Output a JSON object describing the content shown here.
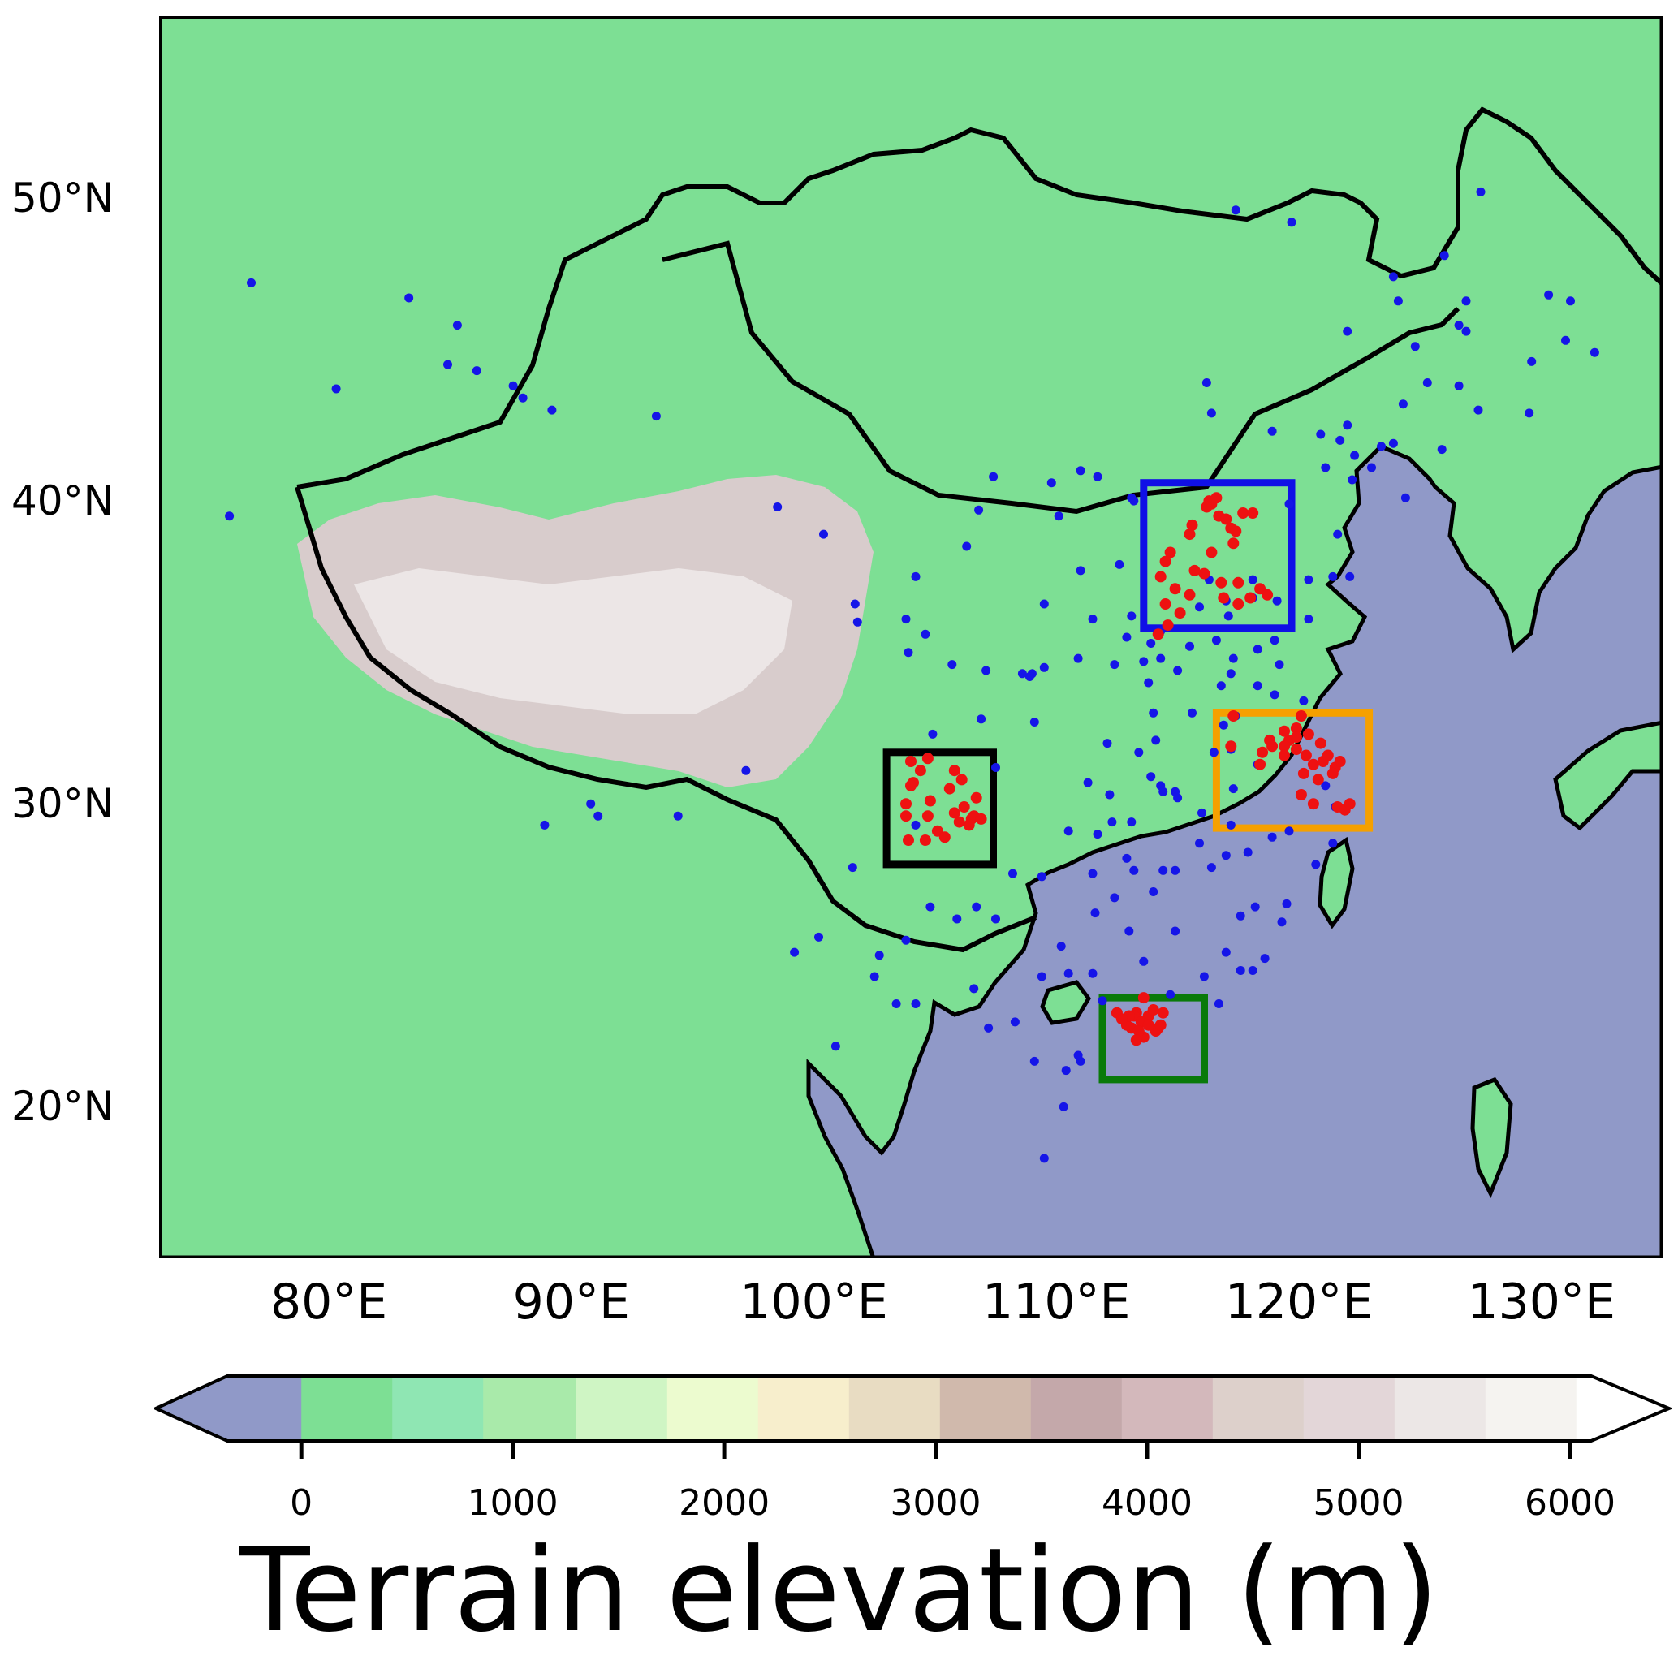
{
  "map": {
    "title": "",
    "lon_range": [
      73,
      135
    ],
    "lat_range": [
      15,
      56
    ],
    "colors": {
      "ocean": "#9099c8",
      "land_low": "#7ddf94",
      "land_mid": "#8fe6b3",
      "plateau": "#d8cccc",
      "plateau_high": "#ece6e6",
      "coast": "#000000",
      "site_blue": "#1515e8",
      "site_red": "#ee1111"
    },
    "lat_axis": {
      "ticks": [
        {
          "value": 50,
          "label": "50°N"
        },
        {
          "value": 40,
          "label": "40°N"
        },
        {
          "value": 30,
          "label": "30°N"
        },
        {
          "value": 20,
          "label": "20°N"
        }
      ]
    },
    "lon_axis": {
      "ticks": [
        {
          "value": 80,
          "label": "80°E"
        },
        {
          "value": 90,
          "label": "90°E"
        },
        {
          "value": 100,
          "label": "100°E"
        },
        {
          "value": 110,
          "label": "110°E"
        },
        {
          "value": 120,
          "label": "120°E"
        },
        {
          "value": 130,
          "label": "130°E"
        }
      ]
    },
    "region_boxes": [
      {
        "color": "#1010e6",
        "lon": [
          113.6,
          119.7
        ],
        "lat": [
          35.8,
          40.6
        ]
      },
      {
        "color": "#f5a000",
        "lon": [
          116.6,
          122.9
        ],
        "lat": [
          29.2,
          33.0
        ]
      },
      {
        "color": "#000000",
        "lon": [
          103.0,
          107.4
        ],
        "lat": [
          28.0,
          31.7
        ]
      },
      {
        "color": "#0a7a0a",
        "lon": [
          111.9,
          116.1
        ],
        "lat": [
          20.9,
          23.6
        ]
      }
    ],
    "blue_sites": [
      [
        76.8,
        47.2
      ],
      [
        83.3,
        46.7
      ],
      [
        85.3,
        45.8
      ],
      [
        80.3,
        43.7
      ],
      [
        84.9,
        44.5
      ],
      [
        86.1,
        44.3
      ],
      [
        87.6,
        43.8
      ],
      [
        88.0,
        43.4
      ],
      [
        89.2,
        43.0
      ],
      [
        93.5,
        42.8
      ],
      [
        75.9,
        39.5
      ],
      [
        90.8,
        30.0
      ],
      [
        91.1,
        29.6
      ],
      [
        94.4,
        29.6
      ],
      [
        88.9,
        29.3
      ],
      [
        97.2,
        31.1
      ],
      [
        98.5,
        39.8
      ],
      [
        100.4,
        38.9
      ],
      [
        101.7,
        36.6
      ],
      [
        101.8,
        36.0
      ],
      [
        103.8,
        36.1
      ],
      [
        104.6,
        35.6
      ],
      [
        105.7,
        34.6
      ],
      [
        103.9,
        35.0
      ],
      [
        104.2,
        37.5
      ],
      [
        106.3,
        38.5
      ],
      [
        106.8,
        39.7
      ],
      [
        107.4,
        40.8
      ],
      [
        109.8,
        40.6
      ],
      [
        111.7,
        40.8
      ],
      [
        110.1,
        39.5
      ],
      [
        111.0,
        37.7
      ],
      [
        112.6,
        37.9
      ],
      [
        112.9,
        35.5
      ],
      [
        113.1,
        36.2
      ],
      [
        113.2,
        40.0
      ],
      [
        111.5,
        36.1
      ],
      [
        109.5,
        36.6
      ],
      [
        109.0,
        34.3
      ],
      [
        108.9,
        34.2
      ],
      [
        107.1,
        34.4
      ],
      [
        108.6,
        34.3
      ],
      [
        109.5,
        34.5
      ],
      [
        110.9,
        34.8
      ],
      [
        109.1,
        32.7
      ],
      [
        106.9,
        32.8
      ],
      [
        104.9,
        32.3
      ],
      [
        106.1,
        30.8
      ],
      [
        105.6,
        30.5
      ],
      [
        107.5,
        31.2
      ],
      [
        106.6,
        29.6
      ],
      [
        104.2,
        29.3
      ],
      [
        102.7,
        25.0
      ],
      [
        103.8,
        25.5
      ],
      [
        102.5,
        24.3
      ],
      [
        101.6,
        27.9
      ],
      [
        100.2,
        25.6
      ],
      [
        99.2,
        25.1
      ],
      [
        100.9,
        22.0
      ],
      [
        103.4,
        23.4
      ],
      [
        104.2,
        23.4
      ],
      [
        106.7,
        26.6
      ],
      [
        104.8,
        26.6
      ],
      [
        105.9,
        26.2
      ],
      [
        107.5,
        26.2
      ],
      [
        108.2,
        27.7
      ],
      [
        109.4,
        27.6
      ],
      [
        110.2,
        25.3
      ],
      [
        108.3,
        22.8
      ],
      [
        109.4,
        24.3
      ],
      [
        110.5,
        24.4
      ],
      [
        111.5,
        24.4
      ],
      [
        111.0,
        21.5
      ],
      [
        110.4,
        21.2
      ],
      [
        109.1,
        21.5
      ],
      [
        106.6,
        23.9
      ],
      [
        107.2,
        22.6
      ],
      [
        110.3,
        20.0
      ],
      [
        109.5,
        18.3
      ],
      [
        112.9,
        28.2
      ],
      [
        113.2,
        27.8
      ],
      [
        112.4,
        26.9
      ],
      [
        113.0,
        25.8
      ],
      [
        111.6,
        26.4
      ],
      [
        111.5,
        27.7
      ],
      [
        112.3,
        29.4
      ],
      [
        113.1,
        29.4
      ],
      [
        111.7,
        29.0
      ],
      [
        110.5,
        29.1
      ],
      [
        114.3,
        30.6
      ],
      [
        114.4,
        30.4
      ],
      [
        113.9,
        30.9
      ],
      [
        112.2,
        30.3
      ],
      [
        111.3,
        30.7
      ],
      [
        112.1,
        32.0
      ],
      [
        113.4,
        31.7
      ],
      [
        114.9,
        30.4
      ],
      [
        115.0,
        30.2
      ],
      [
        114.1,
        32.1
      ],
      [
        113.6,
        34.7
      ],
      [
        112.4,
        34.6
      ],
      [
        114.3,
        34.8
      ],
      [
        114.3,
        35.7
      ],
      [
        113.9,
        35.3
      ],
      [
        115.0,
        34.4
      ],
      [
        113.8,
        34.0
      ],
      [
        114.0,
        33.0
      ],
      [
        115.6,
        33.0
      ],
      [
        116.8,
        33.9
      ],
      [
        117.2,
        31.8
      ],
      [
        116.5,
        31.7
      ],
      [
        117.3,
        30.5
      ],
      [
        118.3,
        31.3
      ],
      [
        116.9,
        32.6
      ],
      [
        117.4,
        32.9
      ],
      [
        115.9,
        28.7
      ],
      [
        116.0,
        29.7
      ],
      [
        117.0,
        28.3
      ],
      [
        117.2,
        29.3
      ],
      [
        114.9,
        27.8
      ],
      [
        114.4,
        27.8
      ],
      [
        114.0,
        27.1
      ],
      [
        114.9,
        25.8
      ],
      [
        116.4,
        27.9
      ],
      [
        117.9,
        28.4
      ],
      [
        113.6,
        22.3
      ],
      [
        114.1,
        22.5
      ],
      [
        113.1,
        22.6
      ],
      [
        112.5,
        23.1
      ],
      [
        116.7,
        23.4
      ],
      [
        116.1,
        24.3
      ],
      [
        114.7,
        23.7
      ],
      [
        113.6,
        24.8
      ],
      [
        111.9,
        23.5
      ],
      [
        110.9,
        21.7
      ],
      [
        119.3,
        26.1
      ],
      [
        118.1,
        24.5
      ],
      [
        118.6,
        24.9
      ],
      [
        117.6,
        24.5
      ],
      [
        117.0,
        25.1
      ],
      [
        118.2,
        26.6
      ],
      [
        117.6,
        26.3
      ],
      [
        119.5,
        26.7
      ],
      [
        120.7,
        28.0
      ],
      [
        121.4,
        28.7
      ],
      [
        120.1,
        30.3
      ],
      [
        119.6,
        29.1
      ],
      [
        118.9,
        28.9
      ],
      [
        120.6,
        30.0
      ],
      [
        121.5,
        29.9
      ],
      [
        121.1,
        30.6
      ],
      [
        117.0,
        36.7
      ],
      [
        117.1,
        36.2
      ],
      [
        118.1,
        36.8
      ],
      [
        120.4,
        36.1
      ],
      [
        119.1,
        36.7
      ],
      [
        121.4,
        37.5
      ],
      [
        122.1,
        37.5
      ],
      [
        120.4,
        37.4
      ],
      [
        118.3,
        35.1
      ],
      [
        117.3,
        34.8
      ],
      [
        116.6,
        35.4
      ],
      [
        115.5,
        35.2
      ],
      [
        115.9,
        36.5
      ],
      [
        116.3,
        37.4
      ],
      [
        118.1,
        37.4
      ],
      [
        119.0,
        35.4
      ],
      [
        119.2,
        34.6
      ],
      [
        119.0,
        33.6
      ],
      [
        118.3,
        33.9
      ],
      [
        117.2,
        34.3
      ],
      [
        120.2,
        33.4
      ],
      [
        121.6,
        38.9
      ],
      [
        122.2,
        40.7
      ],
      [
        123.4,
        41.8
      ],
      [
        123.0,
        41.1
      ],
      [
        124.4,
        40.1
      ],
      [
        121.1,
        41.1
      ],
      [
        121.7,
        42.0
      ],
      [
        119.6,
        39.9
      ],
      [
        118.9,
        42.3
      ],
      [
        120.9,
        42.2
      ],
      [
        122.3,
        41.5
      ],
      [
        123.9,
        41.9
      ],
      [
        124.3,
        43.2
      ],
      [
        125.3,
        43.9
      ],
      [
        126.6,
        43.8
      ],
      [
        125.9,
        41.7
      ],
      [
        127.4,
        43.0
      ],
      [
        129.5,
        42.9
      ],
      [
        124.8,
        45.1
      ],
      [
        122.0,
        45.6
      ],
      [
        126.6,
        45.8
      ],
      [
        126.9,
        45.6
      ],
      [
        124.1,
        46.6
      ],
      [
        126.9,
        46.6
      ],
      [
        130.3,
        46.8
      ],
      [
        131.0,
        45.3
      ],
      [
        131.2,
        46.6
      ],
      [
        132.2,
        44.9
      ],
      [
        129.6,
        44.6
      ],
      [
        123.9,
        47.4
      ],
      [
        126.0,
        48.1
      ],
      [
        127.5,
        50.2
      ],
      [
        119.7,
        49.2
      ],
      [
        117.4,
        49.6
      ],
      [
        122.0,
        42.5
      ],
      [
        113.1,
        40.1
      ],
      [
        111.0,
        41.0
      ],
      [
        116.4,
        42.9
      ],
      [
        116.2,
        43.9
      ]
    ],
    "red_sites": [
      [
        116.4,
        39.9
      ],
      [
        116.3,
        40.0
      ],
      [
        116.6,
        40.1
      ],
      [
        116.2,
        39.8
      ],
      [
        116.7,
        39.5
      ],
      [
        117.2,
        39.1
      ],
      [
        117.0,
        39.4
      ],
      [
        117.4,
        39.0
      ],
      [
        115.5,
        38.9
      ],
      [
        115.6,
        39.2
      ],
      [
        114.5,
        38.0
      ],
      [
        114.7,
        38.3
      ],
      [
        114.3,
        37.5
      ],
      [
        114.5,
        36.6
      ],
      [
        115.5,
        36.9
      ],
      [
        114.9,
        37.1
      ],
      [
        116.4,
        38.3
      ],
      [
        116.8,
        37.3
      ],
      [
        117.5,
        37.3
      ],
      [
        116.1,
        37.6
      ],
      [
        115.7,
        37.7
      ],
      [
        117.3,
        38.6
      ],
      [
        118.0,
        36.8
      ],
      [
        117.5,
        36.6
      ],
      [
        116.9,
        36.8
      ],
      [
        118.4,
        37.1
      ],
      [
        118.7,
        36.9
      ],
      [
        115.1,
        36.3
      ],
      [
        114.2,
        35.6
      ],
      [
        114.6,
        35.9
      ],
      [
        117.7,
        39.6
      ],
      [
        118.1,
        39.6
      ],
      [
        118.8,
        32.1
      ],
      [
        118.9,
        31.9
      ],
      [
        119.4,
        32.4
      ],
      [
        119.6,
        32.1
      ],
      [
        119.9,
        31.8
      ],
      [
        120.3,
        31.6
      ],
      [
        120.6,
        31.3
      ],
      [
        121.0,
        31.4
      ],
      [
        121.5,
        31.2
      ],
      [
        121.4,
        31.0
      ],
      [
        121.2,
        31.6
      ],
      [
        121.7,
        31.4
      ],
      [
        120.9,
        32.0
      ],
      [
        120.4,
        32.3
      ],
      [
        119.9,
        32.5
      ],
      [
        119.4,
        31.9
      ],
      [
        118.4,
        31.3
      ],
      [
        120.1,
        30.3
      ],
      [
        120.6,
        30.0
      ],
      [
        120.8,
        30.8
      ],
      [
        121.6,
        29.9
      ],
      [
        120.2,
        31.0
      ],
      [
        119.4,
        31.6
      ],
      [
        118.5,
        31.7
      ],
      [
        117.3,
        32.9
      ],
      [
        117.2,
        31.9
      ],
      [
        119.9,
        32.2
      ],
      [
        120.1,
        32.9
      ],
      [
        121.9,
        29.8
      ],
      [
        122.1,
        30.0
      ],
      [
        104.1,
        30.7
      ],
      [
        104.0,
        30.6
      ],
      [
        104.7,
        31.5
      ],
      [
        104.4,
        31.1
      ],
      [
        103.8,
        30.0
      ],
      [
        104.7,
        29.6
      ],
      [
        105.1,
        29.1
      ],
      [
        105.4,
        28.9
      ],
      [
        104.6,
        28.8
      ],
      [
        104.8,
        30.1
      ],
      [
        105.6,
        30.5
      ],
      [
        105.8,
        31.1
      ],
      [
        106.1,
        30.8
      ],
      [
        106.2,
        29.9
      ],
      [
        106.5,
        29.5
      ],
      [
        106.6,
        29.6
      ],
      [
        106.4,
        29.3
      ],
      [
        106.9,
        29.5
      ],
      [
        106.7,
        30.2
      ],
      [
        103.8,
        29.6
      ],
      [
        106.0,
        29.4
      ],
      [
        104.0,
        31.4
      ],
      [
        103.9,
        28.8
      ],
      [
        105.8,
        29.7
      ],
      [
        113.3,
        23.1
      ],
      [
        113.2,
        23.0
      ],
      [
        113.1,
        22.6
      ],
      [
        113.6,
        22.3
      ],
      [
        114.1,
        22.5
      ],
      [
        113.8,
        23.0
      ],
      [
        114.4,
        23.1
      ],
      [
        113.5,
        22.8
      ],
      [
        112.5,
        23.1
      ],
      [
        112.9,
        22.7
      ],
      [
        113.4,
        22.5
      ],
      [
        114.2,
        22.6
      ],
      [
        113.0,
        23.0
      ],
      [
        113.8,
        22.7
      ],
      [
        114.0,
        23.2
      ],
      [
        113.6,
        23.6
      ],
      [
        112.7,
        22.9
      ],
      [
        113.3,
        22.2
      ],
      [
        114.3,
        22.7
      ]
    ]
  },
  "colorbar": {
    "title": "Terrain elevation (m)",
    "min": -350,
    "max": 6100,
    "segments": [
      {
        "from": -350,
        "to": 0,
        "color": "#9099c8"
      },
      {
        "from": 0,
        "to": 430,
        "color": "#7ddf94"
      },
      {
        "from": 430,
        "to": 860,
        "color": "#8fe6b3"
      },
      {
        "from": 860,
        "to": 1300,
        "color": "#a9eaaa"
      },
      {
        "from": 1300,
        "to": 1730,
        "color": "#cff5c4"
      },
      {
        "from": 1730,
        "to": 2160,
        "color": "#ecfbcf"
      },
      {
        "from": 2160,
        "to": 2590,
        "color": "#f7eecc"
      },
      {
        "from": 2590,
        "to": 3020,
        "color": "#e8dcc2"
      },
      {
        "from": 3020,
        "to": 3450,
        "color": "#d0b9ac"
      },
      {
        "from": 3450,
        "to": 3880,
        "color": "#c4a8aa"
      },
      {
        "from": 3880,
        "to": 4310,
        "color": "#d3b8bb"
      },
      {
        "from": 4310,
        "to": 4740,
        "color": "#ddd0cb"
      },
      {
        "from": 4740,
        "to": 5170,
        "color": "#e3d6d8"
      },
      {
        "from": 5170,
        "to": 5600,
        "color": "#ece7e6"
      },
      {
        "from": 5600,
        "to": 6030,
        "color": "#f5f3f0"
      },
      {
        "from": 6030,
        "to": 6100,
        "color": "#ffffff"
      }
    ],
    "extend_low_color": "#9099c8",
    "extend_high_color": "#ffffff",
    "ticks": [
      {
        "value": 0,
        "label": "0"
      },
      {
        "value": 1000,
        "label": "1000"
      },
      {
        "value": 2000,
        "label": "2000"
      },
      {
        "value": 3000,
        "label": "3000"
      },
      {
        "value": 4000,
        "label": "4000"
      },
      {
        "value": 5000,
        "label": "5000"
      },
      {
        "value": 6000,
        "label": "6000"
      }
    ]
  }
}
